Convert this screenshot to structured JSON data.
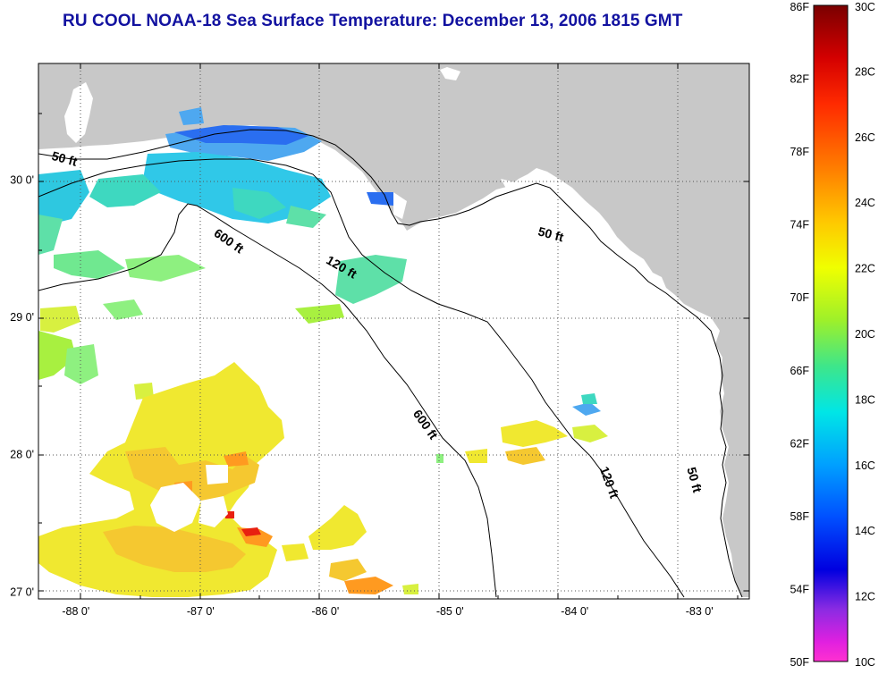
{
  "title": "RU COOL  NOAA-18  Sea Surface Temperature:  December 13, 2006 1815 GMT",
  "map": {
    "lon_range": [
      -88.3,
      -82.6
    ],
    "lat_range": [
      26.95,
      30.85
    ],
    "x_ticks": [
      {
        "value": -88,
        "label": "-88 0'"
      },
      {
        "value": -87,
        "label": "-87 0'"
      },
      {
        "value": -86,
        "label": "-86 0'"
      },
      {
        "value": -85,
        "label": "-85 0'"
      },
      {
        "value": -84,
        "label": "-84 0'"
      },
      {
        "value": -83,
        "label": "-83 0'"
      }
    ],
    "y_ticks": [
      {
        "value": 30,
        "label": "30 0'"
      },
      {
        "value": 29,
        "label": "29 0'"
      },
      {
        "value": 28,
        "label": "28 0'"
      },
      {
        "value": 27,
        "label": "27 0'"
      }
    ],
    "contour_labels": [
      {
        "text": "50 ft",
        "lon": -88.2,
        "lat": 30.15,
        "rotate": 15
      },
      {
        "text": "600 ft",
        "lon": -86.9,
        "lat": 29.6,
        "rotate": 35
      },
      {
        "text": "120 ft",
        "lon": -86.0,
        "lat": 29.4,
        "rotate": 30
      },
      {
        "text": "50 ft",
        "lon": -84.3,
        "lat": 29.6,
        "rotate": 15
      },
      {
        "text": "600 ft",
        "lon": -85.3,
        "lat": 28.3,
        "rotate": 55
      },
      {
        "text": "120 ft",
        "lon": -83.8,
        "lat": 27.9,
        "rotate": 70
      },
      {
        "text": "50 ft",
        "lon": -83.1,
        "lat": 27.9,
        "rotate": 75
      }
    ],
    "land_color": "#c8c8c8",
    "sea_color": "#ffffff"
  },
  "colorbar": {
    "f_labels": [
      "86F",
      "82F",
      "78F",
      "74F",
      "70F",
      "66F",
      "62F",
      "58F",
      "54F",
      "50F"
    ],
    "c_labels": [
      "30C",
      "28C",
      "26C",
      "24C",
      "22C",
      "20C",
      "18C",
      "16C",
      "14C",
      "12C",
      "10C"
    ],
    "f_range": [
      50,
      86
    ],
    "c_range": [
      10,
      30
    ],
    "colors_top_to_bottom": [
      "#7a0000",
      "#d40000",
      "#ff2a00",
      "#ff7f00",
      "#ffc800",
      "#f0ff00",
      "#9ef02a",
      "#3ee68a",
      "#00e6e6",
      "#00a0ff",
      "#0050ff",
      "#0000e0",
      "#8a2be2",
      "#e020e0",
      "#ff30d0"
    ]
  }
}
